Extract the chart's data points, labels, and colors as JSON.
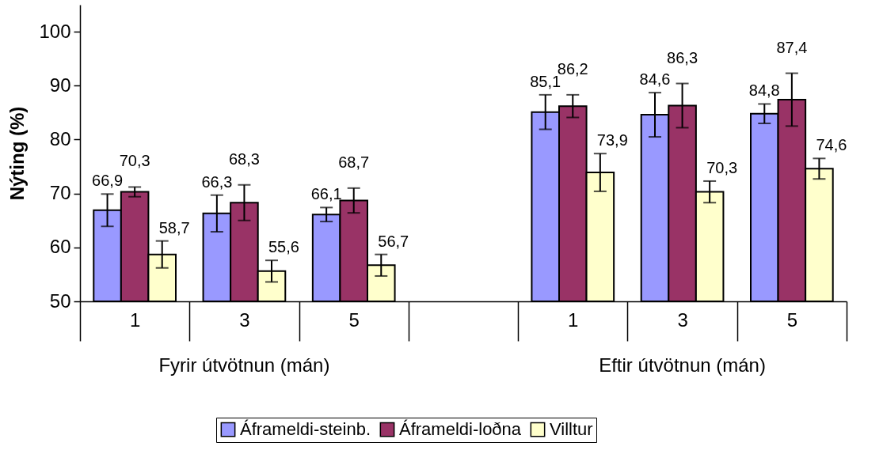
{
  "chart_data": {
    "type": "bar",
    "ylabel": "Nýting (%)",
    "categories": [
      "1",
      "3",
      "5",
      null,
      "1",
      "3",
      "5"
    ],
    "annotations": [
      "Fyrir útvötnun (mán)",
      "Eftir útvötnun (mán)"
    ],
    "ylim": [
      50,
      105
    ],
    "yticks": [
      50,
      60,
      70,
      80,
      90,
      100
    ],
    "grid": false,
    "legend": "bottom",
    "series": [
      {
        "name": "Áframeldi-steinb.",
        "color": "#9999ff",
        "values": [
          66.9,
          66.3,
          66.1,
          null,
          85.1,
          84.6,
          84.8
        ],
        "errors": [
          3.0,
          3.4,
          1.3,
          null,
          3.2,
          4.1,
          1.8
        ],
        "value_labels": [
          "66,9",
          "66,3",
          "66,1",
          null,
          "85,1",
          "84,6",
          "84,8"
        ]
      },
      {
        "name": "Áframeldi-loðna",
        "color": "#993366",
        "values": [
          70.3,
          68.3,
          68.7,
          null,
          86.2,
          86.3,
          87.4
        ],
        "errors": [
          0.9,
          3.3,
          2.3,
          null,
          2.1,
          4.1,
          4.9
        ],
        "value_labels": [
          "70,3",
          "68,3",
          "68,7",
          null,
          "86,2",
          "86,3",
          "87,4"
        ]
      },
      {
        "name": "Villtur",
        "color": "#ffffcc",
        "values": [
          58.7,
          55.6,
          56.7,
          null,
          73.9,
          70.3,
          74.6
        ],
        "errors": [
          2.5,
          2.0,
          2.0,
          null,
          3.5,
          2.0,
          1.9
        ],
        "value_labels": [
          "58,7",
          "55,6",
          "56,7",
          null,
          "73,9",
          "70,3",
          "74,6"
        ]
      }
    ]
  }
}
